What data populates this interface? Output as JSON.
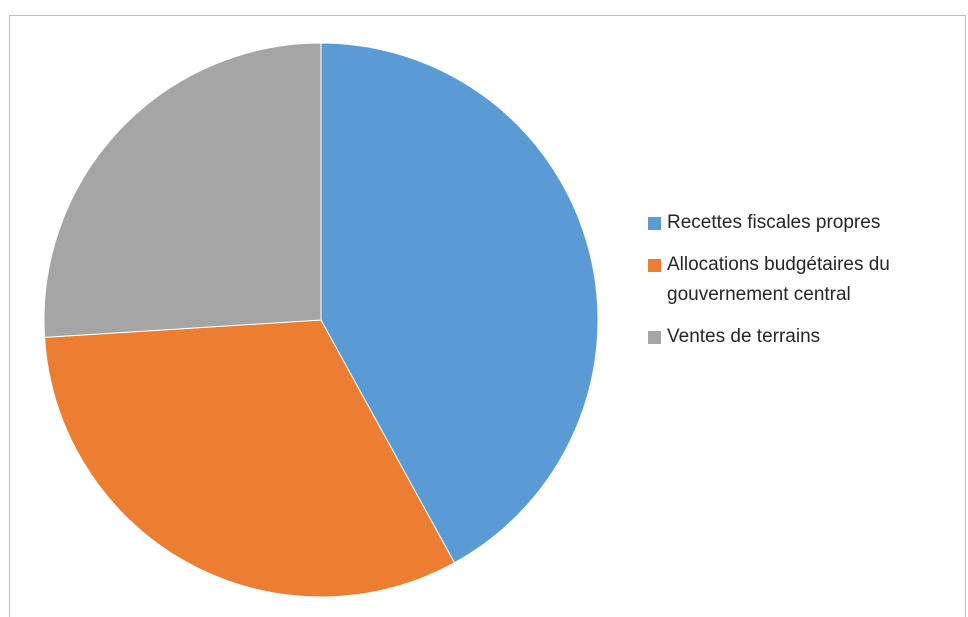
{
  "chart_data": {
    "type": "pie",
    "categories": [
      "Recettes fiscales propres",
      "Allocations budgétaires du gouvernement central",
      "Ventes de terrains"
    ],
    "values": [
      42,
      32,
      26
    ],
    "colors": [
      "#5b9bd5",
      "#ed7d31",
      "#a5a5a5"
    ],
    "legend": "right"
  }
}
